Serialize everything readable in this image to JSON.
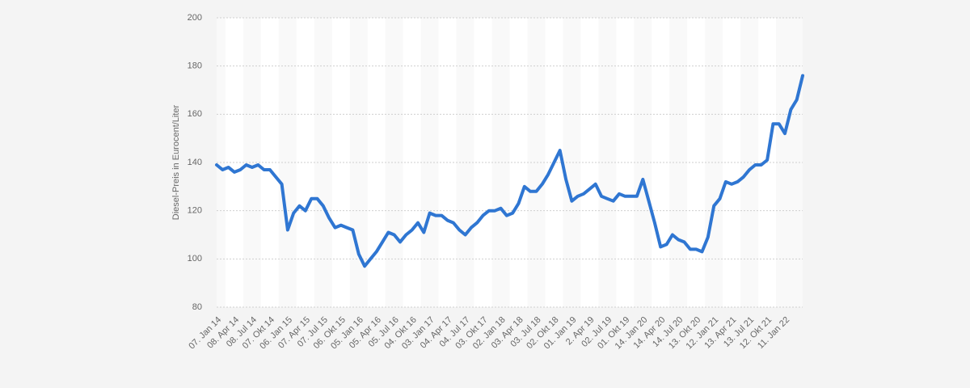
{
  "chart_data": {
    "type": "line",
    "ylabel": "Diesel-Preis in Eurocent/Liter",
    "categories": [
      "07. Jan 14",
      null,
      null,
      "08. Apr 14",
      null,
      null,
      "08. Jul 14",
      null,
      null,
      "07. Okt 14",
      null,
      null,
      "06. Jan 15",
      null,
      null,
      "07. Apr 15",
      null,
      null,
      "07. Jul 15",
      null,
      null,
      "06. Okt 15",
      null,
      null,
      "05. Jan 16",
      null,
      null,
      "05. Apr 16",
      null,
      null,
      "05. Jul 16",
      null,
      null,
      "04. Okt 16",
      null,
      null,
      "03. Jan 17",
      null,
      null,
      "04. Apr 17",
      null,
      null,
      "04. Jul 17",
      null,
      null,
      "03. Okt 17",
      null,
      null,
      "02. Jan 18",
      null,
      null,
      "03. Apr 18",
      null,
      null,
      "03. Jul 18",
      null,
      null,
      "02. Okt 18",
      null,
      null,
      "01. Jan 19",
      null,
      null,
      "2. Apr 19",
      null,
      null,
      "02. Jul 19",
      null,
      null,
      "01. Okt 19",
      null,
      null,
      "14. Jan 20",
      null,
      null,
      "14. Apr 20",
      null,
      null,
      "14. Jul 20",
      null,
      null,
      "13. Okt 20",
      null,
      null,
      "12. Jan 21",
      null,
      null,
      "13. Apr 21",
      null,
      null,
      "13. Jul 21",
      null,
      null,
      "12. Okt 21",
      null,
      null,
      "11. Jan 22",
      null,
      null,
      null
    ],
    "values": [
      139,
      137,
      138,
      136,
      137,
      139,
      138,
      139,
      137,
      137,
      134,
      131,
      112,
      119,
      122,
      120,
      125,
      125,
      122,
      117,
      113,
      114,
      113,
      112,
      102,
      97,
      100,
      103,
      107,
      111,
      110,
      107,
      110,
      112,
      115,
      111,
      119,
      118,
      118,
      116,
      115,
      112,
      110,
      113,
      115,
      118,
      120,
      120,
      121,
      118,
      119,
      123,
      130,
      128,
      128,
      131,
      135,
      140,
      145,
      133,
      124,
      126,
      127,
      129,
      131,
      126,
      125,
      124,
      127,
      126,
      126,
      126,
      133,
      124,
      115,
      105,
      106,
      110,
      108,
      107,
      104,
      104,
      103,
      109,
      122,
      125,
      132,
      131,
      132,
      134,
      137,
      139,
      139,
      141,
      156,
      156,
      152,
      162,
      166,
      176
    ],
    "color": "#2f76d2",
    "ylim": [
      80,
      200
    ],
    "yticks": [
      80,
      100,
      120,
      140,
      160,
      180,
      200
    ],
    "grid": true
  }
}
